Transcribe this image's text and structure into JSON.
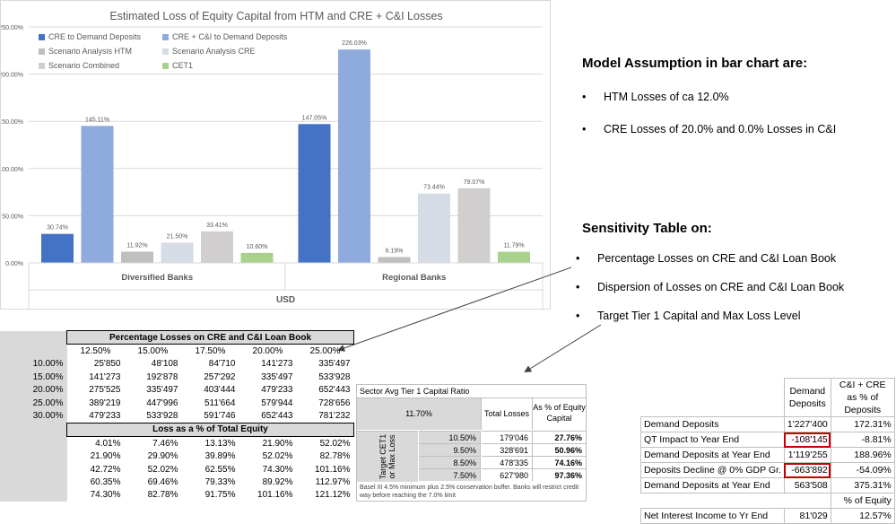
{
  "chart_data": {
    "type": "bar",
    "title": "Estimated Loss of Equity Capital from HTM and CRE + C&I Losses",
    "categories": [
      "Diversified Banks",
      "Regional Banks"
    ],
    "xlabel": "USD",
    "ylabel": "",
    "ylim": [
      0,
      250
    ],
    "yticks": [
      "0.00%",
      "50.00%",
      "100.00%",
      "150.00%",
      "200.00%",
      "250.00%"
    ],
    "grid": true,
    "legend_position": "top-left",
    "series": [
      {
        "name": "CRE to Demand Deposits",
        "color": "#4472c4",
        "values": [
          30.74,
          147.05
        ],
        "labels": [
          "30.74%",
          "147.05%"
        ]
      },
      {
        "name": "CRE + C&I to Demand Deposits",
        "color": "#8faadc",
        "values": [
          145.11,
          226.03
        ],
        "labels": [
          "145.11%",
          "226.03%"
        ]
      },
      {
        "name": "Scenario Analysis HTM",
        "color": "#bfbfbf",
        "values": [
          11.92,
          6.19
        ],
        "labels": [
          "11.92%",
          "6.19%"
        ]
      },
      {
        "name": "Scenario Analysis CRE",
        "color": "#d6dce5",
        "values": [
          21.5,
          73.44
        ],
        "labels": [
          "21.50%",
          "73.44%"
        ]
      },
      {
        "name": "Scenario Combined",
        "color": "#d0cece",
        "values": [
          33.41,
          79.07
        ],
        "labels": [
          "33.41%",
          "79.07%"
        ]
      },
      {
        "name": "CET1",
        "color": "#a9d18e",
        "values": [
          10.6,
          11.79
        ],
        "labels": [
          "10.60%",
          "11.79%"
        ]
      }
    ]
  },
  "notes": {
    "model_title": "Model Assumption in bar chart are:",
    "model_items": [
      "HTM Losses of ca 12.0%",
      "CRE Losses of 20.0% and 0.0% Losses in C&I"
    ],
    "sens_title": "Sensitivity Table on:",
    "sens_items": [
      "Percentage Losses on CRE and C&I Loan Book",
      "Dispersion of Losses on CRE and C&I Loan Book",
      "Target Tier 1 Capital and Max Loss Level"
    ]
  },
  "sens_table": {
    "title": "Percentage Losses on CRE and C&I Loan Book",
    "cols": [
      "12.50%",
      "15.00%",
      "17.50%",
      "20.00%",
      "25.00%"
    ],
    "rows": [
      {
        "label": "10.00%",
        "values": [
          "25'850",
          "48'108",
          "84'710",
          "141'273",
          "335'497"
        ]
      },
      {
        "label": "15.00%",
        "values": [
          "141'273",
          "192'878",
          "257'292",
          "335'497",
          "533'928"
        ]
      },
      {
        "label": "20.00%",
        "values": [
          "275'525",
          "335'497",
          "403'444",
          "479'233",
          "652'443"
        ]
      },
      {
        "label": "25.00%",
        "values": [
          "389'219",
          "447'996",
          "511'664",
          "579'944",
          "728'656"
        ]
      },
      {
        "label": "30.00%",
        "values": [
          "479'233",
          "533'928",
          "591'746",
          "652'443",
          "781'232"
        ]
      }
    ],
    "loss_title": "Loss as a % of Total Equity",
    "loss_rows": [
      [
        "4.01%",
        "7.46%",
        "13.13%",
        "21.90%",
        "52.02%"
      ],
      [
        "21.90%",
        "29.90%",
        "39.89%",
        "52.02%",
        "82.78%"
      ],
      [
        "42.72%",
        "52.02%",
        "62.55%",
        "74.30%",
        "101.16%"
      ],
      [
        "60.35%",
        "69.46%",
        "79.33%",
        "89.92%",
        "112.97%"
      ],
      [
        "74.30%",
        "82.78%",
        "91.75%",
        "101.16%",
        "121.12%"
      ]
    ]
  },
  "tier1_table": {
    "title": "Sector Avg Tier 1 Capital Ratio",
    "ratio": "11.70%",
    "col_total": "Total Losses",
    "col_pct": "As % of Equity Capital",
    "side_label": "Target CET1 or Max Loss",
    "rows": [
      {
        "target": "10.50%",
        "losses": "179'046",
        "pct": "27.76%"
      },
      {
        "target": "9.50%",
        "losses": "328'691",
        "pct": "50.96%"
      },
      {
        "target": "8.50%",
        "losses": "478'335",
        "pct": "74.16%"
      },
      {
        "target": "7.50%",
        "losses": "627'980",
        "pct": "97.36%"
      }
    ],
    "footnote": "Basel III 4.5% minimum plus 2.5% conservation buffer. Banks will restrict credit way before reaching the 7.0% limit"
  },
  "deposits_table": {
    "col1": "Demand Deposits",
    "col2": "C&I + CRE as % of Deposits",
    "rows": [
      {
        "label": "Demand Deposits",
        "v1": "1'227'400",
        "v2": "172.31%",
        "boxed": false
      },
      {
        "label": "QT Impact to Year End",
        "v1": "-108'145",
        "v2": "-8.81%",
        "boxed": true
      },
      {
        "label": "Demand Deposits at Year End",
        "v1": "1'119'255",
        "v2": "188.96%",
        "boxed": false
      },
      {
        "label": "Deposits Decline @ 0% GDP Gr.",
        "v1": "-663'892",
        "v2": "-54.09%",
        "boxed": true
      },
      {
        "label": "Demand Deposits at Year End",
        "v1": "563'508",
        "v2": "375.31%",
        "boxed": false
      }
    ],
    "equity_label": "% of Equity",
    "nii_label": "Net Interest Income to Yr End",
    "nii_value": "81'029",
    "nii_pct": "12.57%"
  }
}
